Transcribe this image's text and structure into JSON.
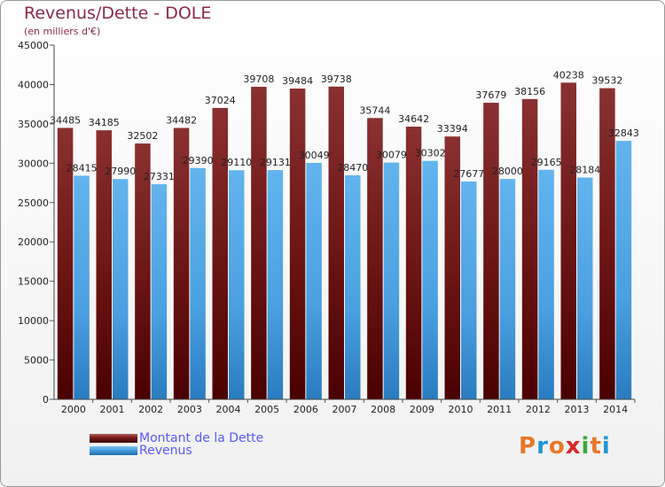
{
  "title": "Revenus/Dette - DOLE",
  "subtitle": "(en milliers d'€)",
  "logo": {
    "text": "Proxiti",
    "colors": [
      "#e8782a",
      "#1f96d8",
      "#e8782a",
      "#d8262a",
      "#3aaa3a",
      "#e8782a",
      "#1f96d8"
    ]
  },
  "chart_data": {
    "type": "bar",
    "categories": [
      "2000",
      "2001",
      "2002",
      "2003",
      "2004",
      "2005",
      "2006",
      "2007",
      "2008",
      "2009",
      "2010",
      "2011",
      "2012",
      "2013",
      "2014"
    ],
    "series": [
      {
        "name": "Montant de la Dette",
        "color": "#7a1e1e",
        "values": [
          34485,
          34185,
          32502,
          34482,
          37024,
          39708,
          39484,
          39738,
          35744,
          34642,
          33394,
          37679,
          38156,
          40238,
          39532
        ]
      },
      {
        "name": "Revenus",
        "color": "#4aa0e0",
        "values": [
          28415,
          27990,
          27331,
          29390,
          29110,
          29131,
          30049,
          28470,
          30079,
          30302,
          27677,
          28000,
          29165,
          28184,
          32843
        ]
      }
    ],
    "ylim": [
      0,
      45000
    ],
    "yticks": [
      0,
      5000,
      10000,
      15000,
      20000,
      25000,
      30000,
      35000,
      40000,
      45000
    ],
    "grid": false,
    "legend_position": "bottom-left"
  }
}
